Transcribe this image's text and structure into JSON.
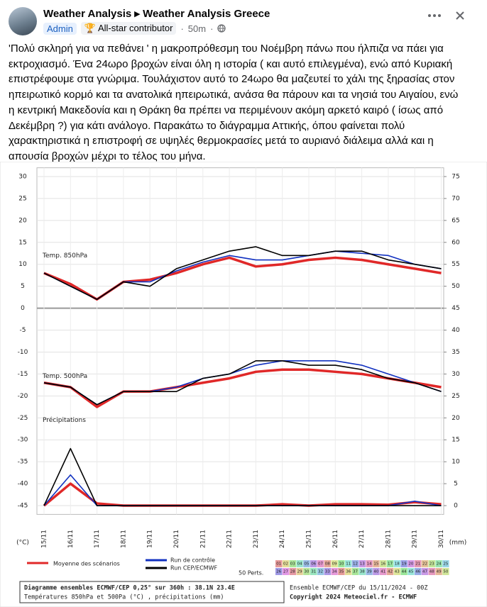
{
  "post": {
    "author": "Weather Analysis",
    "group": "Weather Analysis Greece",
    "role": "Admin",
    "badge": "All-star contributor",
    "time": "50m",
    "text": "'Πολύ σκληρή για να πεθάνει ' η μακροπρόθεσμη του Νοέμβρη πάνω που ήλπιζα να πάει για εκτροχιασμό. Ένα 24ωρο βροχών είναι όλη η ιστορία ( και αυτό επιλεγμένα), ενώ από Κυριακή επιστρέφουμε στα γνώριμα. Τουλάχιστον αυτό το 24ωρο θα μαζευτεί το χάλι της ξηρασίας στον ηπειρωτικό κορμό και τα ανατολικά ηπειρωτικά, ανάσα θα πάρουν και τα νησιά του Αιγαίου, ενώ η κεντρική Μακεδονία και η Θράκη θα πρέπει να περιμένουν ακόμη αρκετό καιρό ( ίσως από Δεκέμβρη ?) για κάτι ανάλογο. Παρακάτω το διάγραμμα Αττικής, όπου φαίνεται πολύ χαρακτηριστικά η επιστροφή σε υψηλές θερμοκρασίες μετά το αυριανό διάλειμα αλλά και η απουσία βροχών μέχρι το τέλος του μήνα."
  },
  "chart_data": {
    "type": "line",
    "y_label": "(°C)",
    "y2_label": "(mm)",
    "annotations": [
      "Temp. 850hPa",
      "Temp. 500hPa",
      "Précipitations"
    ],
    "categories": [
      "15/11",
      "16/11",
      "17/11",
      "18/11",
      "19/11",
      "20/11",
      "21/11",
      "22/11",
      "23/11",
      "24/11",
      "25/11",
      "26/11",
      "27/11",
      "28/11",
      "29/11",
      "30/11"
    ],
    "ylim": [
      -47,
      32
    ],
    "yticks": [
      30,
      25,
      20,
      15,
      10,
      5,
      0,
      -5,
      -10,
      -15,
      -20,
      -25,
      -30,
      -35,
      -40,
      -45
    ],
    "y2lim": [
      -2,
      77
    ],
    "y2ticks": [
      75,
      70,
      65,
      60,
      55,
      50,
      45,
      40,
      35,
      30,
      25,
      20,
      15,
      10,
      5,
      0
    ],
    "grid": true,
    "series": [
      {
        "name": "Moyenne des scénarios",
        "color": "#e02828",
        "values_850": [
          8,
          5.5,
          2,
          6,
          6.5,
          8,
          10,
          11.5,
          9.5,
          10,
          11,
          11.5,
          11,
          10,
          9,
          8
        ],
        "values_500": [
          -17,
          -18,
          -22.5,
          -19,
          -19,
          -18,
          -17,
          -16,
          -14.5,
          -14,
          -14,
          -14.5,
          -15,
          -16,
          -17,
          -18
        ],
        "precip": [
          0,
          5,
          0.5,
          0,
          0,
          0,
          0,
          0,
          0,
          0.3,
          0,
          0.3,
          0.3,
          0.2,
          0.8,
          0.3
        ]
      },
      {
        "name": "Run de contrôle",
        "color": "#1030c0",
        "values_850": [
          8,
          5,
          2,
          6,
          6,
          8.5,
          10.5,
          12,
          11,
          11,
          12,
          13,
          12.5,
          12,
          10,
          9
        ],
        "values_500": [
          -17,
          -18,
          -22,
          -19,
          -19,
          -18,
          -16,
          -15,
          -13,
          -12,
          -12,
          -12,
          -13,
          -15,
          -17,
          -19
        ],
        "precip": [
          0,
          7,
          0,
          0,
          0,
          0,
          0,
          0,
          0,
          0,
          0,
          0,
          0,
          0,
          1,
          0
        ]
      },
      {
        "name": "Run CEP/ECMWF",
        "color": "#000000",
        "values_850": [
          8,
          5,
          2,
          6,
          5,
          9,
          11,
          13,
          14,
          12,
          12,
          13,
          13,
          11,
          10,
          9
        ],
        "values_500": [
          -17,
          -18,
          -22,
          -19,
          -19,
          -19,
          -16,
          -15,
          -12,
          -12,
          -13,
          -13,
          -14,
          -16,
          -17,
          -19
        ],
        "precip": [
          0,
          13,
          0,
          0,
          0,
          0,
          0,
          0,
          0,
          0,
          0,
          0,
          0,
          0,
          0,
          0
        ]
      }
    ],
    "perts_label": "50 Perts.",
    "perts": [
      "01",
      "02",
      "03",
      "04",
      "05",
      "06",
      "07",
      "08",
      "09",
      "10",
      "11",
      "12",
      "13",
      "14",
      "15",
      "16",
      "17",
      "18",
      "19",
      "20",
      "21",
      "22",
      "23",
      "24",
      "25",
      "26",
      "27",
      "28",
      "29",
      "30",
      "31",
      "32",
      "33",
      "34",
      "35",
      "36",
      "37",
      "38",
      "39",
      "40",
      "41",
      "42",
      "43",
      "44",
      "45",
      "46",
      "47",
      "48",
      "49",
      "50"
    ],
    "footer": [
      "Diagramme ensembles ECMWF/CEP 0,25° sur 360h : 38.1N 23.4E",
      "Températures 850hPa et 500Pa (°C) , précipitations (mm)",
      "Ensemble ECMWF/CEP du 15/11/2024 - 00Z",
      "Copyright 2024 Meteociel.fr - ECMWF"
    ]
  }
}
